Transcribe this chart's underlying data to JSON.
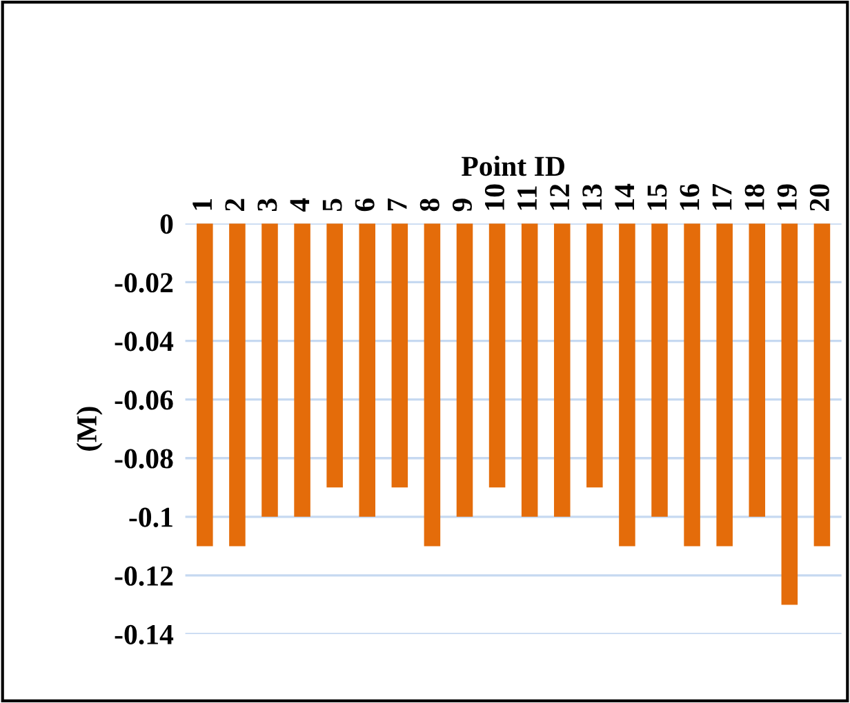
{
  "chart_data": {
    "type": "bar",
    "xlabel": "Point ID",
    "ylabel": "(M)",
    "categories": [
      "1",
      "2",
      "3",
      "4",
      "5",
      "6",
      "7",
      "8",
      "9",
      "10",
      "11",
      "12",
      "13",
      "14",
      "15",
      "16",
      "17",
      "18",
      "19",
      "20"
    ],
    "values": [
      -0.11,
      -0.11,
      -0.1,
      -0.1,
      -0.09,
      -0.1,
      -0.09,
      -0.11,
      -0.1,
      -0.09,
      -0.1,
      -0.1,
      -0.09,
      -0.11,
      -0.1,
      -0.11,
      -0.11,
      -0.1,
      -0.13,
      -0.11
    ],
    "color": "#e46c0a",
    "ylim": [
      -0.14,
      0
    ],
    "yticks": [
      0,
      -0.02,
      -0.04,
      -0.06,
      -0.08,
      -0.1,
      -0.12,
      -0.14
    ],
    "grid": "y"
  }
}
